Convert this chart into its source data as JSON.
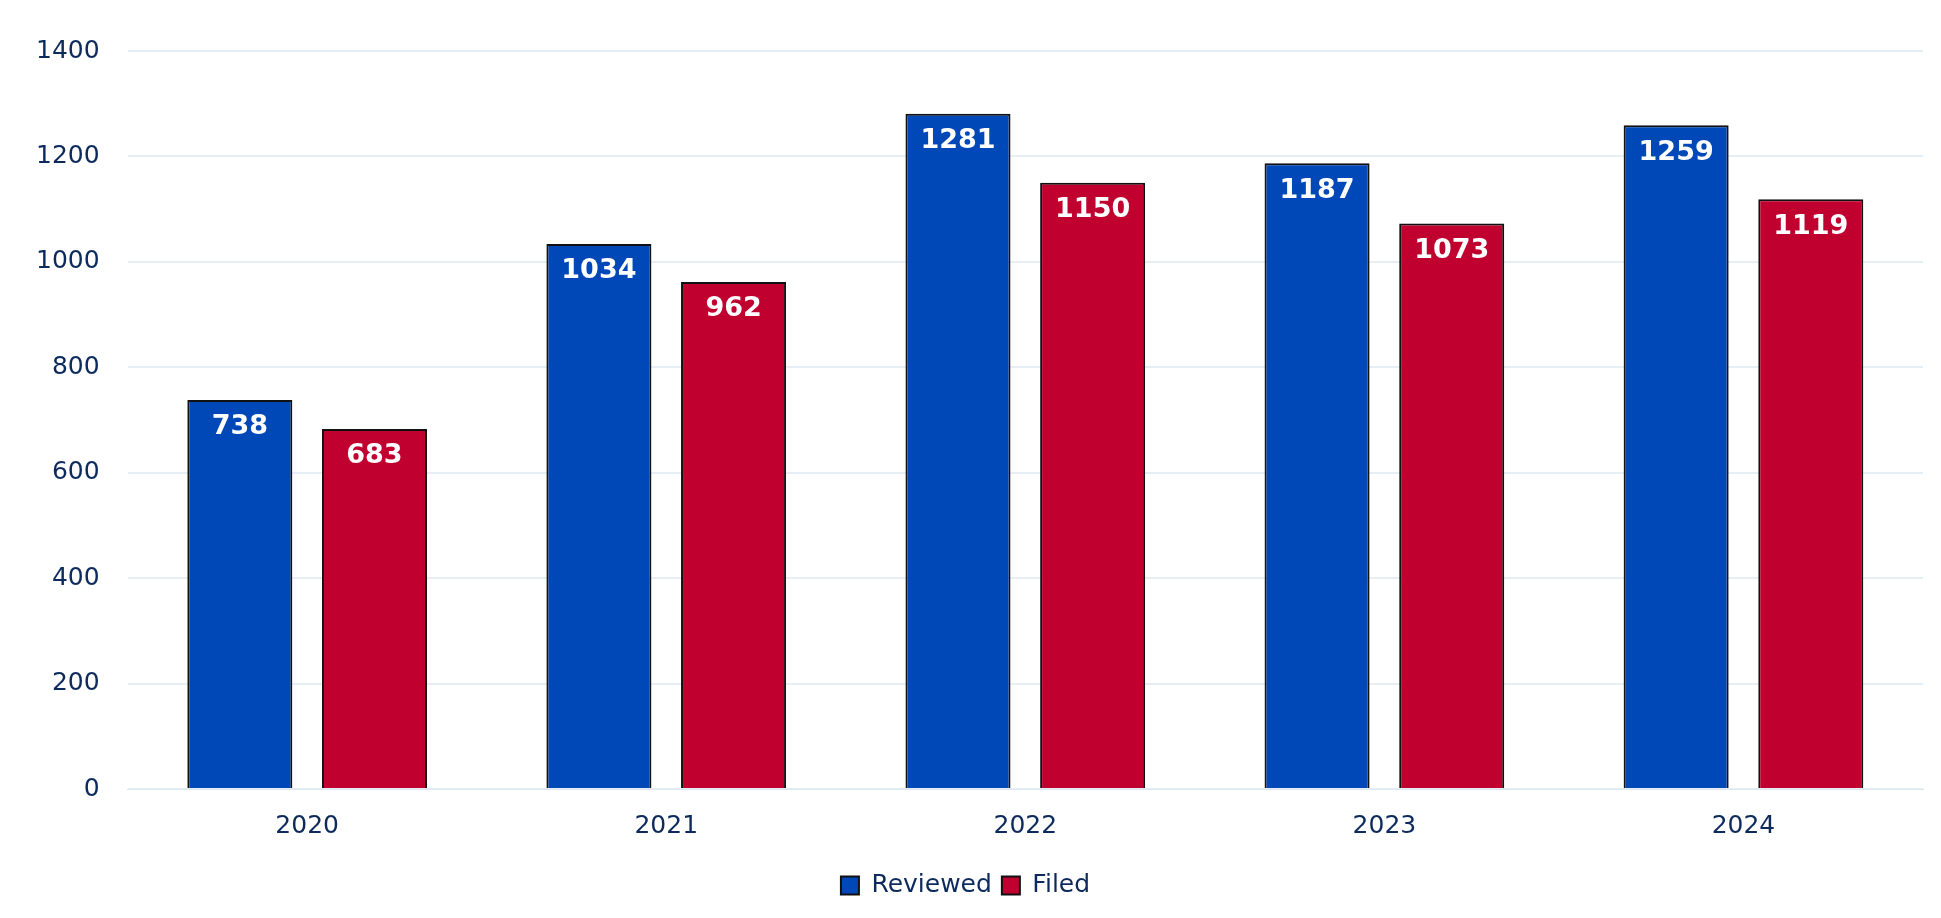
{
  "chart_data": {
    "type": "bar",
    "categories": [
      "2020",
      "2021",
      "2022",
      "2023",
      "2024"
    ],
    "series": [
      {
        "name": "Reviewed",
        "color": "#0047b8",
        "values": [
          738,
          1034,
          1281,
          1187,
          1259
        ]
      },
      {
        "name": "Filed",
        "color": "#c0002f",
        "values": [
          683,
          962,
          1150,
          1073,
          1119
        ]
      }
    ],
    "ylim": [
      0,
      1400
    ],
    "yticks": [
      0,
      200,
      400,
      600,
      800,
      1000,
      1200,
      1400
    ],
    "grid": "y",
    "legend": "bottom",
    "data_labels": true
  }
}
